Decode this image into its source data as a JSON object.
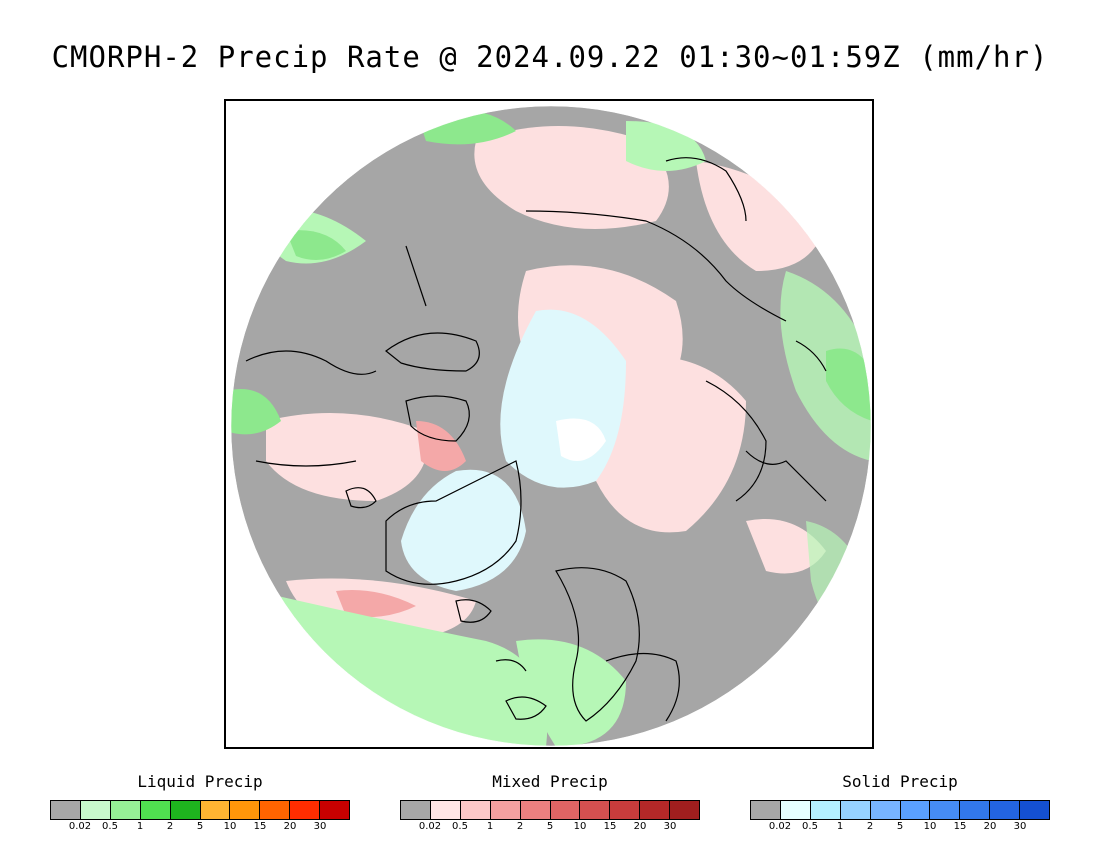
{
  "title": "CMORPH-2 Precip Rate @ 2024.09.22 01:30~01:59Z (mm/hr)",
  "map": {
    "projection": "polar stereographic (north pole)",
    "colors": {
      "no_precip": "#a6a6a6",
      "liquid_light": "#b6f7b6",
      "liquid_mod": "#8de88d",
      "mixed_light": "#fde0e0",
      "mixed_mod": "#f4a8a8",
      "solid_light": "#dff8fc",
      "coastline": "#000000"
    }
  },
  "legends": [
    {
      "title": "Liquid Precip",
      "colors": [
        "#a6a6a6",
        "#c8facc",
        "#96f096",
        "#50e050",
        "#1eb41e",
        "#ffb432",
        "#ff960a",
        "#ff6400",
        "#ff2d00",
        "#c80000"
      ],
      "ticks": [
        "0.02",
        "0.5",
        "1",
        "2",
        "5",
        "10",
        "15",
        "20",
        "30"
      ]
    },
    {
      "title": "Mixed Precip",
      "colors": [
        "#a6a6a6",
        "#ffe6e6",
        "#fcc8c8",
        "#f4a0a0",
        "#ec8080",
        "#e06464",
        "#d45050",
        "#c83c3c",
        "#b42828",
        "#a01e1e"
      ],
      "ticks": [
        "0.02",
        "0.5",
        "1",
        "2",
        "5",
        "10",
        "15",
        "20",
        "30"
      ]
    },
    {
      "title": "Solid Precip",
      "colors": [
        "#a6a6a6",
        "#e6ffff",
        "#b4f0ff",
        "#96d2ff",
        "#78b4ff",
        "#5aa0ff",
        "#468cf5",
        "#3278eb",
        "#2364e1",
        "#1450d2"
      ],
      "ticks": [
        "0.02",
        "0.5",
        "1",
        "2",
        "5",
        "10",
        "15",
        "20",
        "30"
      ]
    }
  ]
}
